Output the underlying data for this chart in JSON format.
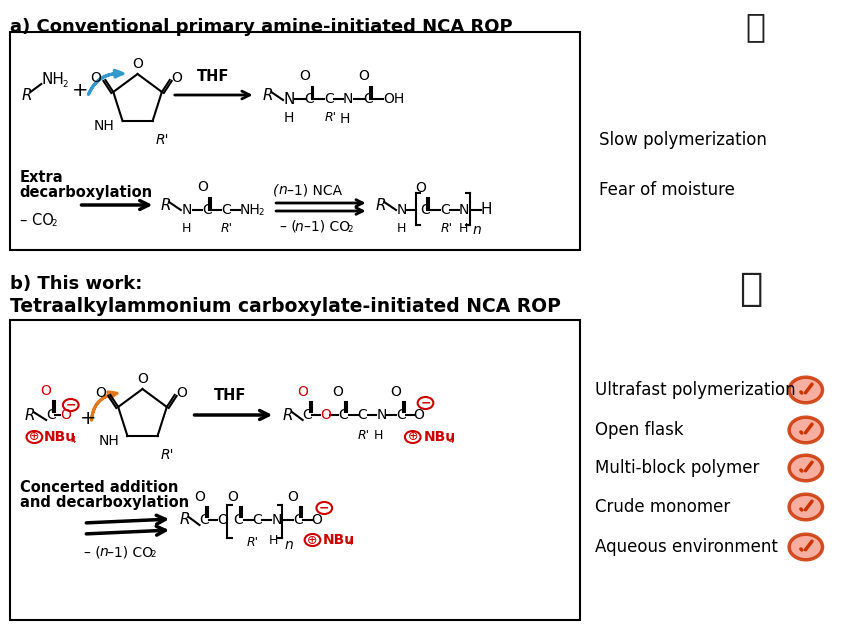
{
  "title_a": "a) Conventional primary amine-initiated NCA ROP",
  "title_b_line1": "b) This work:",
  "title_b_line2": "Tetraalkylammonium carboxylate-initiated NCA ROP",
  "section_a_right": [
    "Slow polymerization",
    "Fear of moisture"
  ],
  "section_b_right": [
    "Ultrafast polymerization",
    "Open flask",
    "Multi-block polymer",
    "Crude monomer",
    "Aqueous environment"
  ],
  "bg_color": "#ffffff",
  "red_color": "#cc0000",
  "orange_color": "#e07820",
  "check_fill": "#f4a090",
  "check_stroke": "#cc3300",
  "blue_arrow": "#3399cc",
  "fig_w": 8.45,
  "fig_h": 6.36,
  "dpi": 100
}
